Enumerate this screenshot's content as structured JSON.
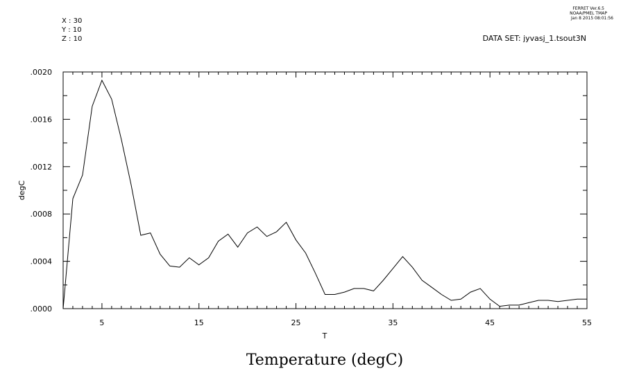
{
  "header": {
    "ferret_version": "FERRET  Ver.6.5",
    "org": "NOAA/PMEL TMAP",
    "datetime": "Jan  8 2015 08:01:56",
    "loc_x": "X : 30",
    "loc_y": "Y : 10",
    "loc_z": "Z : 10",
    "dataset": "DATA SET: jyvasj_1.tsout3N"
  },
  "chart_data": {
    "type": "line",
    "title": "Temperature (degC)",
    "xlabel": "T",
    "ylabel": "degC",
    "xlim": [
      1,
      55
    ],
    "ylim": [
      0,
      0.002
    ],
    "x_ticks": [
      5,
      15,
      25,
      35,
      45,
      55
    ],
    "x_tick_labels": [
      "5",
      "15",
      "25",
      "35",
      "45",
      "55"
    ],
    "y_ticks": [
      0,
      0.0004,
      0.0008,
      0.0012,
      0.0016,
      0.002
    ],
    "y_tick_labels": [
      ".0000",
      ".0004",
      ".0008",
      ".0012",
      ".0016",
      ".0020"
    ],
    "grid": false,
    "x": [
      1,
      2,
      3,
      4,
      5,
      6,
      7,
      8,
      9,
      10,
      11,
      12,
      13,
      14,
      15,
      16,
      17,
      18,
      19,
      20,
      21,
      22,
      23,
      24,
      25,
      26,
      27,
      28,
      29,
      30,
      31,
      32,
      33,
      34,
      35,
      36,
      37,
      38,
      39,
      40,
      41,
      42,
      43,
      44,
      45,
      46,
      47,
      48,
      49,
      50,
      51,
      52,
      53,
      54,
      55
    ],
    "values": [
      0.0,
      0.00093,
      0.00113,
      0.00171,
      0.00193,
      0.00177,
      0.00143,
      0.00105,
      0.00062,
      0.00064,
      0.00046,
      0.00036,
      0.00035,
      0.00043,
      0.00037,
      0.00043,
      0.00057,
      0.00063,
      0.00052,
      0.00064,
      0.00069,
      0.00061,
      0.00065,
      0.00073,
      0.00058,
      0.00047,
      0.0003,
      0.00012,
      0.00012,
      0.00014,
      0.00017,
      0.00017,
      0.00015,
      0.00024,
      0.00034,
      0.00044,
      0.00035,
      0.00024,
      0.00018,
      0.00012,
      7e-05,
      8e-05,
      0.00014,
      0.00017,
      8e-05,
      2e-05,
      3e-05,
      3e-05,
      5e-05,
      7e-05,
      7e-05,
      6e-05,
      7e-05,
      8e-05,
      8e-05
    ]
  }
}
